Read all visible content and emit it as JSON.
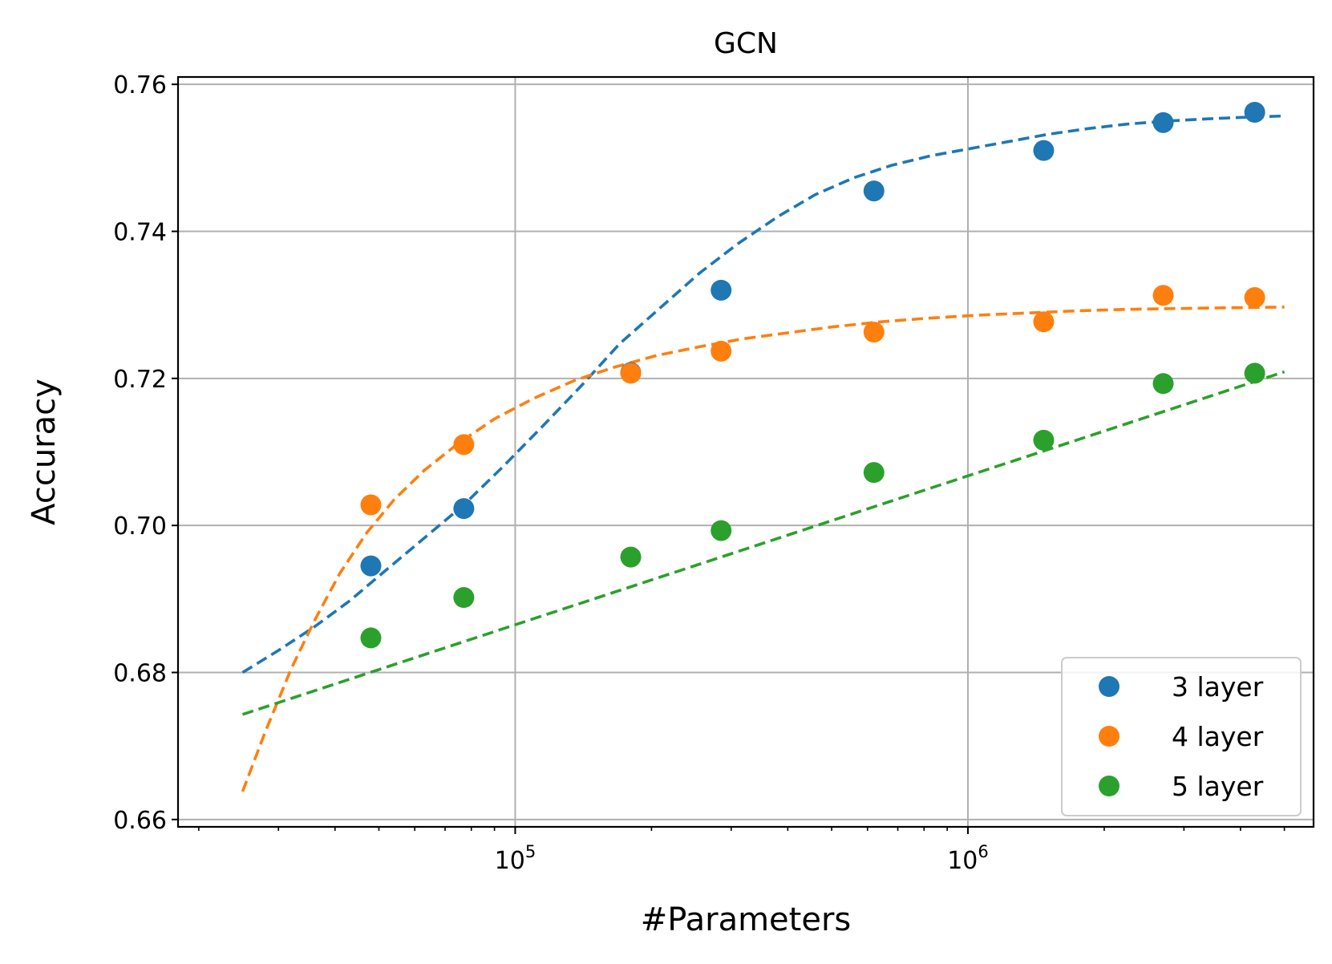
{
  "chart_data": {
    "type": "scatter",
    "title": "GCN",
    "xlabel": "#Parameters",
    "ylabel": "Accuracy",
    "xscale": "log",
    "xlim": [
      18000,
      5800000
    ],
    "ylim": [
      0.659,
      0.761
    ],
    "xticks": [
      {
        "value": 100000,
        "base": "10",
        "exp": "5"
      },
      {
        "value": 1000000,
        "base": "10",
        "exp": "6"
      }
    ],
    "yticks": [
      {
        "value": 0.66,
        "label": "0.66"
      },
      {
        "value": 0.68,
        "label": "0.68"
      },
      {
        "value": 0.7,
        "label": "0.70"
      },
      {
        "value": 0.72,
        "label": "0.72"
      },
      {
        "value": 0.74,
        "label": "0.74"
      },
      {
        "value": 0.76,
        "label": "0.76"
      }
    ],
    "grid": true,
    "legend_position": "lower-right",
    "series": [
      {
        "name": "3 layer",
        "color": "#1f77b4",
        "x": [
          48000,
          77000,
          180000,
          285000,
          620000,
          1470000,
          2700000,
          4300000
        ],
        "y": [
          0.6945,
          0.7023,
          0.7208,
          0.732,
          0.7455,
          0.751,
          0.7548,
          0.7562
        ],
        "fit": {
          "x": [
            25000,
            30000,
            36000,
            43000,
            52000,
            63000,
            77000,
            94000,
            115000,
            140000,
            170000,
            210000,
            255000,
            310000,
            380000,
            460000,
            560000,
            680000,
            830000,
            1000000,
            1250000,
            1500000,
            1850000,
            2250000,
            2750000,
            3350000,
            4000000,
            5000000
          ],
          "y": [
            0.68,
            0.683,
            0.6862,
            0.6897,
            0.694,
            0.6983,
            0.7028,
            0.708,
            0.7135,
            0.719,
            0.7247,
            0.7297,
            0.7343,
            0.7383,
            0.742,
            0.745,
            0.7473,
            0.749,
            0.7503,
            0.7512,
            0.7523,
            0.7532,
            0.754,
            0.7546,
            0.755,
            0.7553,
            0.7555,
            0.7557
          ]
        }
      },
      {
        "name": "4 layer",
        "color": "#ff7f0e",
        "x": [
          48000,
          77000,
          180000,
          285000,
          620000,
          1470000,
          2700000,
          4300000
        ],
        "y": [
          0.7028,
          0.711,
          0.7207,
          0.7237,
          0.7263,
          0.7277,
          0.7313,
          0.731
        ],
        "fit": {
          "x": [
            25000,
            28000,
            32000,
            36000,
            41000,
            47000,
            54000,
            63000,
            75000,
            90000,
            110000,
            135000,
            165000,
            205000,
            255000,
            320000,
            400000,
            500000,
            640000,
            820000,
            1050000,
            1350000,
            1750000,
            2250000,
            2900000,
            3700000,
            5000000
          ],
          "y": [
            0.6638,
            0.6718,
            0.6805,
            0.687,
            0.6935,
            0.699,
            0.7035,
            0.7075,
            0.7112,
            0.7145,
            0.7173,
            0.7197,
            0.7215,
            0.7231,
            0.7243,
            0.7254,
            0.7262,
            0.727,
            0.7277,
            0.7282,
            0.7286,
            0.7289,
            0.7292,
            0.7294,
            0.7295,
            0.7296,
            0.7297
          ]
        }
      },
      {
        "name": "5 layer",
        "color": "#2ca02c",
        "x": [
          48000,
          77000,
          180000,
          285000,
          620000,
          1470000,
          2700000,
          4300000
        ],
        "y": [
          0.6847,
          0.6902,
          0.6957,
          0.6993,
          0.7072,
          0.7116,
          0.7193,
          0.7207
        ],
        "fit": {
          "x": [
            25000,
            5000000
          ],
          "y": [
            0.6743,
            0.7209
          ]
        }
      }
    ]
  }
}
